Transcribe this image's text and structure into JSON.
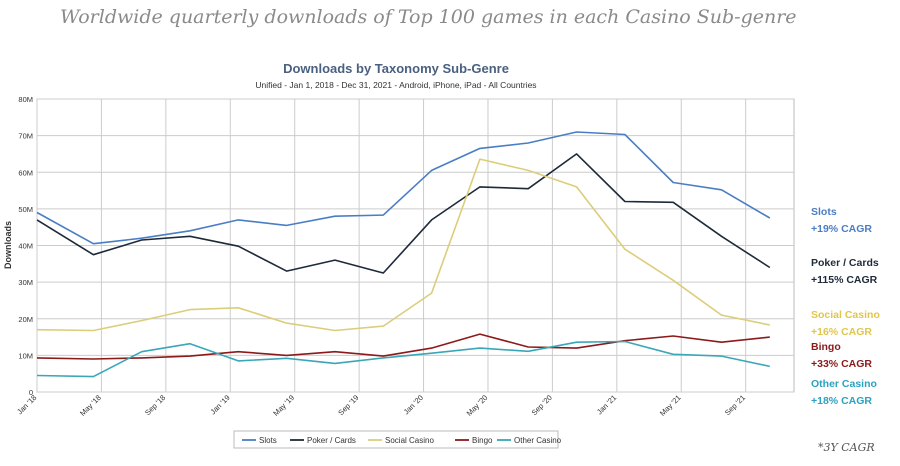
{
  "headline": "Worldwide quarterly downloads of Top 100 games in each Casino Sub-genre",
  "footnote": "*3Y CAGR",
  "colors": {
    "Slots": "#4a7ec4",
    "Poker / Cards": "#1e2a3a",
    "Social Casino": "#dccd7a",
    "Bingo": "#8b1a1a",
    "Other Casino": "#3aa7b7"
  },
  "side_labels": [
    {
      "name": "Slots",
      "cagr": "+19% CAGR",
      "name_color": "#4a7ec4",
      "cagr_color": "#4a7ec4"
    },
    {
      "name": "Poker / Cards",
      "cagr": "+115% CAGR",
      "name_color": "#1e2a3a",
      "cagr_color": "#1e2a3a"
    },
    {
      "name": "Social Casino",
      "cagr": "+16% CAGR",
      "name_color": "#e1c64a",
      "cagr_color": "#e1c64a"
    },
    {
      "name": "Bingo",
      "cagr": "+33% CAGR",
      "name_color": "#8b1a1a",
      "cagr_color": "#8b1a1a"
    },
    {
      "name": "Other Casino",
      "cagr": "+18% CAGR",
      "name_color": "#2aa2c0",
      "cagr_color": "#2aa2c0"
    }
  ],
  "chart_data": {
    "type": "line",
    "title": "Downloads by Taxonomy Sub-Genre",
    "subtitle": "Unified - Jan 1, 2018 - Dec 31, 2021 - Android, iPhone, iPad - All Countries",
    "ylabel": "Downloads",
    "xlabel": "",
    "ylim": [
      0,
      80
    ],
    "y_ticks": [
      0,
      10,
      20,
      30,
      40,
      50,
      60,
      70,
      80
    ],
    "y_tick_labels": [
      "0",
      "10M",
      "20M",
      "30M",
      "40M",
      "50M",
      "60M",
      "70M",
      "80M"
    ],
    "x_ticks": [
      0,
      4,
      8,
      12,
      16,
      20,
      24,
      28,
      32,
      36,
      40,
      44
    ],
    "x_tick_labels": [
      "Jan '18",
      "May '18",
      "Sep '18",
      "Jan '19",
      "May '19",
      "Sep '19",
      "Jan '20",
      "May '20",
      "Sep '20",
      "Jan '21",
      "May '21",
      "Sep '21"
    ],
    "x_range": [
      0,
      47
    ],
    "x": [
      0,
      3.5,
      6.5,
      9.5,
      12.5,
      15.5,
      18.5,
      21.5,
      24.5,
      27.5,
      30.5,
      33.5,
      36.5,
      39.5,
      42.5,
      45.5,
      47
    ],
    "grid": true,
    "legend": "bottom",
    "series": [
      {
        "name": "Slots",
        "values": [
          49,
          40.5,
          42,
          44,
          47,
          45.5,
          48,
          48.3,
          60.5,
          66.5,
          68,
          71,
          70.3,
          57.2,
          55.2,
          47.5,
          null
        ]
      },
      {
        "name": "Poker / Cards",
        "values": [
          47,
          37.5,
          41.5,
          42.5,
          39.8,
          33,
          36,
          32.5,
          47,
          56,
          55.5,
          65,
          52,
          51.8,
          42.5,
          34,
          null
        ]
      },
      {
        "name": "Social Casino",
        "values": [
          17,
          16.8,
          19.5,
          22.5,
          23,
          18.8,
          16.8,
          18,
          27,
          63.6,
          60.5,
          56,
          39,
          30.5,
          21,
          18.3,
          null
        ]
      },
      {
        "name": "Bingo",
        "values": [
          9.3,
          9,
          9.3,
          9.8,
          11,
          10,
          11,
          9.8,
          12,
          15.8,
          12.3,
          12,
          14,
          15.3,
          13.6,
          15,
          null
        ]
      },
      {
        "name": "Other Casino",
        "values": [
          4.5,
          4.2,
          11,
          13.2,
          8.5,
          9.2,
          7.8,
          9.3,
          10.6,
          12,
          11.1,
          13.6,
          13.8,
          10.3,
          9.8,
          7,
          null
        ]
      }
    ]
  }
}
